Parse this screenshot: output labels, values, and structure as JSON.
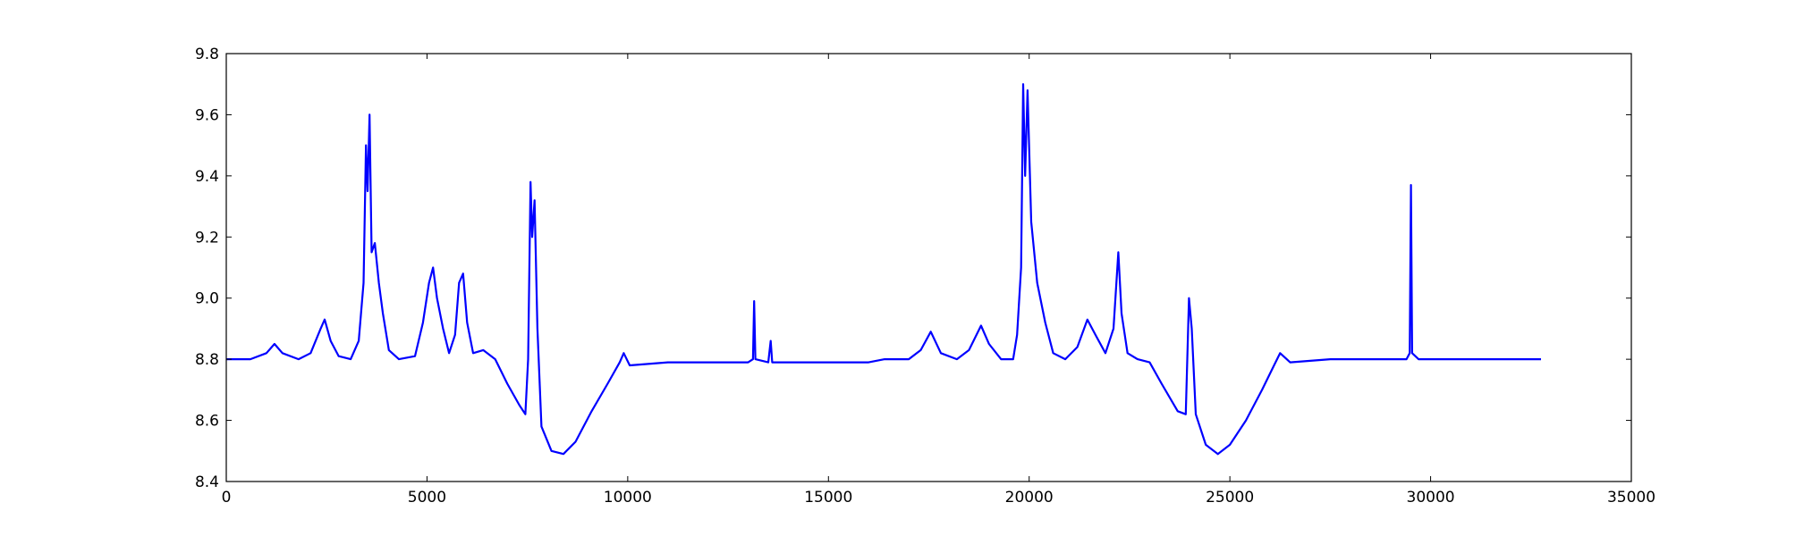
{
  "chart_data": {
    "type": "line",
    "title": "",
    "xlabel": "",
    "ylabel": "",
    "xlim": [
      0,
      35000
    ],
    "ylim": [
      8.4,
      9.8
    ],
    "grid": false,
    "legend": "none",
    "x_ticks": [
      0,
      5000,
      10000,
      15000,
      20000,
      25000,
      30000,
      35000
    ],
    "x_tick_labels": [
      "0",
      "5000",
      "10000",
      "15000",
      "20000",
      "25000",
      "30000",
      "35000"
    ],
    "y_ticks": [
      8.4,
      8.6,
      8.8,
      9.0,
      9.2,
      9.4,
      9.6,
      9.8
    ],
    "y_tick_labels": [
      "8.4",
      "8.6",
      "8.8",
      "9.0",
      "9.2",
      "9.4",
      "9.6",
      "9.8"
    ],
    "series": [
      {
        "name": "",
        "color": "#0000ff",
        "points": [
          [
            0,
            8.8
          ],
          [
            600,
            8.8
          ],
          [
            1000,
            8.82
          ],
          [
            1200,
            8.85
          ],
          [
            1400,
            8.82
          ],
          [
            1800,
            8.8
          ],
          [
            2100,
            8.82
          ],
          [
            2350,
            8.9
          ],
          [
            2450,
            8.93
          ],
          [
            2600,
            8.86
          ],
          [
            2800,
            8.81
          ],
          [
            3100,
            8.8
          ],
          [
            3300,
            8.86
          ],
          [
            3420,
            9.05
          ],
          [
            3480,
            9.5
          ],
          [
            3520,
            9.35
          ],
          [
            3570,
            9.6
          ],
          [
            3620,
            9.15
          ],
          [
            3700,
            9.18
          ],
          [
            3800,
            9.05
          ],
          [
            3900,
            8.95
          ],
          [
            4050,
            8.83
          ],
          [
            4300,
            8.8
          ],
          [
            4700,
            8.81
          ],
          [
            4900,
            8.92
          ],
          [
            5050,
            9.05
          ],
          [
            5150,
            9.1
          ],
          [
            5250,
            9.0
          ],
          [
            5400,
            8.9
          ],
          [
            5550,
            8.82
          ],
          [
            5700,
            8.88
          ],
          [
            5800,
            9.05
          ],
          [
            5900,
            9.08
          ],
          [
            6000,
            8.92
          ],
          [
            6150,
            8.82
          ],
          [
            6400,
            8.83
          ],
          [
            6700,
            8.8
          ],
          [
            7000,
            8.72
          ],
          [
            7300,
            8.65
          ],
          [
            7450,
            8.62
          ],
          [
            7520,
            8.8
          ],
          [
            7580,
            9.38
          ],
          [
            7620,
            9.2
          ],
          [
            7680,
            9.32
          ],
          [
            7750,
            8.9
          ],
          [
            7850,
            8.58
          ],
          [
            8100,
            8.5
          ],
          [
            8400,
            8.49
          ],
          [
            8700,
            8.53
          ],
          [
            9100,
            8.63
          ],
          [
            9500,
            8.72
          ],
          [
            9800,
            8.79
          ],
          [
            9900,
            8.82
          ],
          [
            10050,
            8.78
          ],
          [
            11000,
            8.79
          ],
          [
            12000,
            8.79
          ],
          [
            13000,
            8.79
          ],
          [
            13120,
            8.8
          ],
          [
            13150,
            8.99
          ],
          [
            13180,
            8.8
          ],
          [
            13500,
            8.79
          ],
          [
            13560,
            8.86
          ],
          [
            13600,
            8.79
          ],
          [
            15000,
            8.79
          ],
          [
            16000,
            8.79
          ],
          [
            16400,
            8.8
          ],
          [
            17000,
            8.8
          ],
          [
            17300,
            8.83
          ],
          [
            17550,
            8.89
          ],
          [
            17800,
            8.82
          ],
          [
            18200,
            8.8
          ],
          [
            18500,
            8.83
          ],
          [
            18800,
            8.91
          ],
          [
            19000,
            8.85
          ],
          [
            19300,
            8.8
          ],
          [
            19600,
            8.8
          ],
          [
            19700,
            8.88
          ],
          [
            19800,
            9.1
          ],
          [
            19850,
            9.7
          ],
          [
            19900,
            9.4
          ],
          [
            19960,
            9.68
          ],
          [
            20050,
            9.25
          ],
          [
            20200,
            9.05
          ],
          [
            20400,
            8.92
          ],
          [
            20600,
            8.82
          ],
          [
            20900,
            8.8
          ],
          [
            21200,
            8.84
          ],
          [
            21450,
            8.93
          ],
          [
            21650,
            8.88
          ],
          [
            21900,
            8.82
          ],
          [
            22100,
            8.9
          ],
          [
            22220,
            9.15
          ],
          [
            22300,
            8.95
          ],
          [
            22450,
            8.82
          ],
          [
            22700,
            8.8
          ],
          [
            23000,
            8.79
          ],
          [
            23300,
            8.72
          ],
          [
            23700,
            8.63
          ],
          [
            23900,
            8.62
          ],
          [
            23980,
            9.0
          ],
          [
            24050,
            8.9
          ],
          [
            24150,
            8.62
          ],
          [
            24400,
            8.52
          ],
          [
            24700,
            8.49
          ],
          [
            25000,
            8.52
          ],
          [
            25400,
            8.6
          ],
          [
            25800,
            8.7
          ],
          [
            26100,
            8.78
          ],
          [
            26250,
            8.82
          ],
          [
            26500,
            8.79
          ],
          [
            27500,
            8.8
          ],
          [
            28500,
            8.8
          ],
          [
            29400,
            8.8
          ],
          [
            29480,
            8.82
          ],
          [
            29510,
            9.37
          ],
          [
            29540,
            8.82
          ],
          [
            29700,
            8.8
          ],
          [
            30500,
            8.8
          ],
          [
            31500,
            8.8
          ],
          [
            32400,
            8.8
          ],
          [
            32750,
            8.8
          ]
        ]
      }
    ]
  }
}
